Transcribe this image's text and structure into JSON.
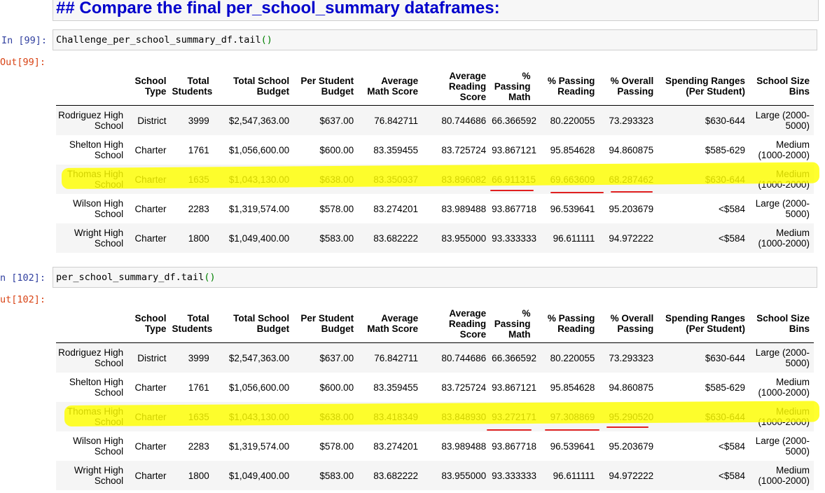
{
  "markdown": {
    "heading": "## Compare the final per_school_summary dataframes:"
  },
  "cells": [
    {
      "in_prompt": "In [99]:",
      "code_name": "Challenge_per_school_summary_df.tail",
      "code_parens": "()",
      "out_prompt": "Out[99]:"
    },
    {
      "in_prompt": "n [102]:",
      "code_name": "per_school_summary_df.tail",
      "code_parens": "()",
      "out_prompt": "ut[102]:"
    }
  ],
  "columns": [
    "",
    "School Type",
    "Total Students",
    "Total School Budget",
    "Per Student Budget",
    "Average Math Score",
    "Average Reading Score",
    "% Passing Math",
    "% Passing Reading",
    "% Overall Passing",
    "Spending Ranges (Per Student)",
    "School Size Bins"
  ],
  "tables": [
    {
      "rows": [
        [
          "Rodriguez High School",
          "District",
          "3999",
          "$2,547,363.00",
          "$637.00",
          "76.842711",
          "80.744686",
          "66.366592",
          "80.220055",
          "73.293323",
          "$630-644",
          "Large (2000-5000)"
        ],
        [
          "Shelton High School",
          "Charter",
          "1761",
          "$1,056,600.00",
          "$600.00",
          "83.359455",
          "83.725724",
          "93.867121",
          "95.854628",
          "94.860875",
          "$585-629",
          "Medium (1000-2000)"
        ],
        [
          "Thomas High School",
          "Charter",
          "1635",
          "$1,043,130.00",
          "$638.00",
          "83.350937",
          "83.896082",
          "66.911315",
          "69.663609",
          "68.287462",
          "$630-644",
          "Medium (1000-2000)"
        ],
        [
          "Wilson High School",
          "Charter",
          "2283",
          "$1,319,574.00",
          "$578.00",
          "83.274201",
          "83.989488",
          "93.867718",
          "96.539641",
          "95.203679",
          "<$584",
          "Large (2000-5000)"
        ],
        [
          "Wright High School",
          "Charter",
          "1800",
          "$1,049,400.00",
          "$583.00",
          "83.682222",
          "83.955000",
          "93.333333",
          "96.611111",
          "94.972222",
          "<$584",
          "Medium (1000-2000)"
        ]
      ]
    },
    {
      "rows": [
        [
          "Rodriguez High School",
          "District",
          "3999",
          "$2,547,363.00",
          "$637.00",
          "76.842711",
          "80.744686",
          "66.366592",
          "80.220055",
          "73.293323",
          "$630-644",
          "Large (2000-5000)"
        ],
        [
          "Shelton High School",
          "Charter",
          "1761",
          "$1,056,600.00",
          "$600.00",
          "83.359455",
          "83.725724",
          "93.867121",
          "95.854628",
          "94.860875",
          "$585-629",
          "Medium (1000-2000)"
        ],
        [
          "Thomas High School",
          "Charter",
          "1635",
          "$1,043,130.00",
          "$638.00",
          "83.418349",
          "83.848930",
          "93.272171",
          "97.308869",
          "95.290520",
          "$630-644",
          "Medium (1000-2000)"
        ],
        [
          "Wilson High School",
          "Charter",
          "2283",
          "$1,319,574.00",
          "$578.00",
          "83.274201",
          "83.989488",
          "93.867718",
          "96.539641",
          "95.203679",
          "<$584",
          "Large (2000-5000)"
        ],
        [
          "Wright High School",
          "Charter",
          "1800",
          "$1,049,400.00",
          "$583.00",
          "83.682222",
          "83.955000",
          "93.333333",
          "96.611111",
          "94.972222",
          "<$584",
          "Medium (1000-2000)"
        ]
      ]
    }
  ],
  "annotations": {
    "highlight_color": "#ffff00",
    "underline_color": "#e02020",
    "highlighted_row": "Thomas High School"
  }
}
